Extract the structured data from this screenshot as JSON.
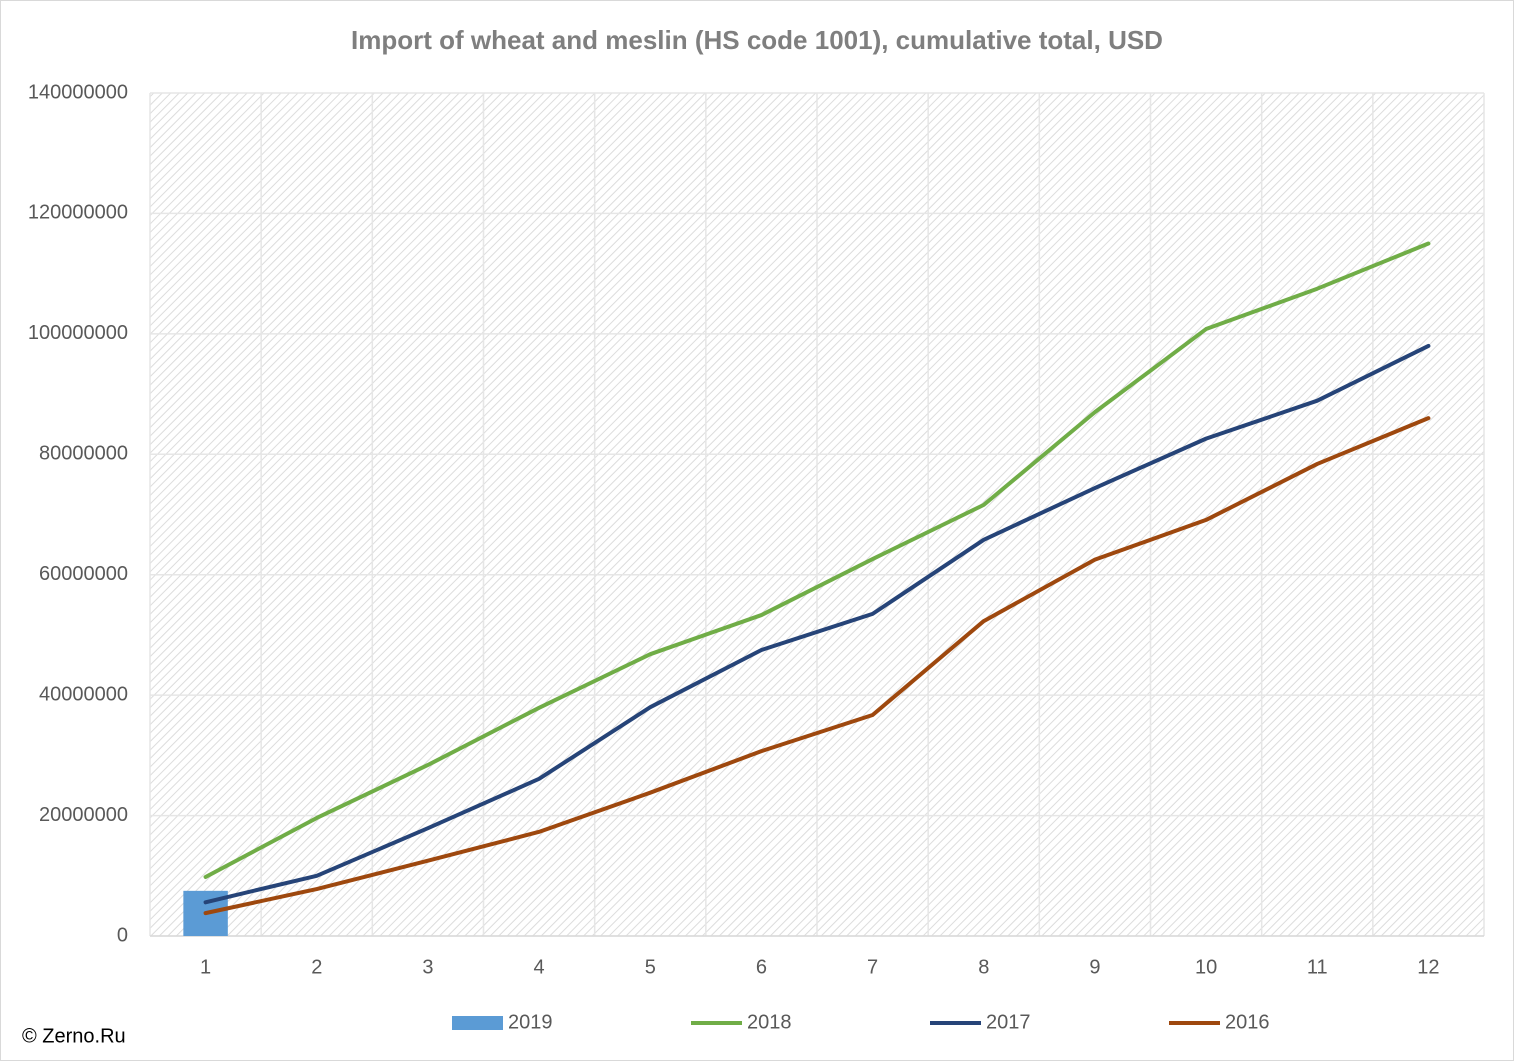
{
  "chart_data": {
    "type": "line",
    "title": "Import of wheat and meslin (HS code 1001), cumulative total, USD",
    "categories": [
      "1",
      "2",
      "3",
      "4",
      "5",
      "6",
      "7",
      "8",
      "9",
      "10",
      "11",
      "12"
    ],
    "series": [
      {
        "name": "2019",
        "type": "bar",
        "color": "#5b9bd5",
        "values": [
          7500000,
          null,
          null,
          null,
          null,
          null,
          null,
          null,
          null,
          null,
          null,
          null
        ]
      },
      {
        "name": "2018",
        "color": "#70ad47",
        "values": [
          9800000,
          19600000,
          28400000,
          37900000,
          46800000,
          53300000,
          62600000,
          71600000,
          87000000,
          100800000,
          107500000,
          115000000
        ]
      },
      {
        "name": "2017",
        "color": "#264478",
        "values": [
          5600000,
          10000000,
          17900000,
          26100000,
          38000000,
          47500000,
          53500000,
          65800000,
          74400000,
          82600000,
          88900000,
          98000000
        ]
      },
      {
        "name": "2016",
        "color": "#9e480e",
        "values": [
          3800000,
          7800000,
          12500000,
          17300000,
          23800000,
          30700000,
          36700000,
          52300000,
          62500000,
          69100000,
          78400000,
          86000000
        ]
      }
    ],
    "ylim": [
      0,
      140000000
    ],
    "yticks": [
      0,
      20000000,
      40000000,
      60000000,
      80000000,
      100000000,
      120000000,
      140000000
    ],
    "grid": true,
    "legend": "bottom",
    "footer": "© Zerno.Ru"
  }
}
